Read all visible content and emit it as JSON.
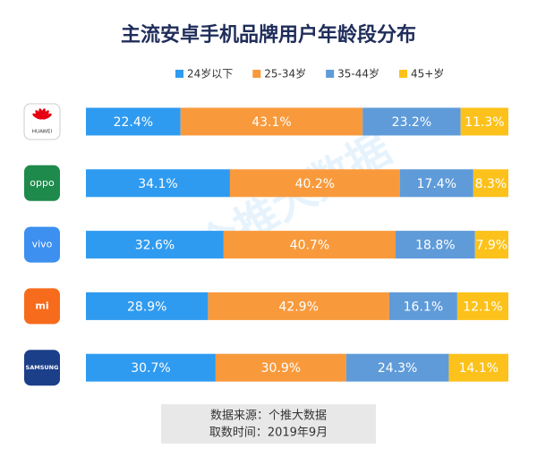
{
  "chart_data": {
    "type": "stacked-bar-horizontal",
    "title": "主流安卓手机品牌用户年龄段分布",
    "categories": [
      "HUAWEI",
      "oppo",
      "vivo",
      "mi",
      "SAMSUNG"
    ],
    "series": [
      {
        "name": "24岁以下",
        "color": "#2f9bf0",
        "values": [
          22.4,
          34.1,
          32.6,
          28.9,
          30.7
        ],
        "value_labels": [
          "22.4%",
          "34.1%",
          "32.6%",
          "28.9%",
          "30.7%"
        ]
      },
      {
        "name": "25-34岁",
        "color": "#f89a3c",
        "values": [
          43.1,
          40.2,
          40.7,
          42.9,
          30.9
        ],
        "value_labels": [
          "43.1%",
          "40.2%",
          "40.7%",
          "42.9%",
          "30.9%"
        ]
      },
      {
        "name": "35-44岁",
        "color": "#5f9bd9",
        "values": [
          23.2,
          17.4,
          18.8,
          16.1,
          24.3
        ],
        "value_labels": [
          "23.2%",
          "17.4%",
          "18.8%",
          "16.1%",
          "24.3%"
        ]
      },
      {
        "name": "45+岁",
        "color": "#fcc21b",
        "values": [
          11.3,
          8.3,
          7.9,
          12.1,
          14.1
        ],
        "value_labels": [
          "11.3%",
          "8.3%",
          "7.9%",
          "12.1%",
          "14.1%"
        ]
      }
    ],
    "watermark": "个推大数据",
    "source": "数据来源：个推大数据",
    "date": "取数时间：2019年9月"
  }
}
